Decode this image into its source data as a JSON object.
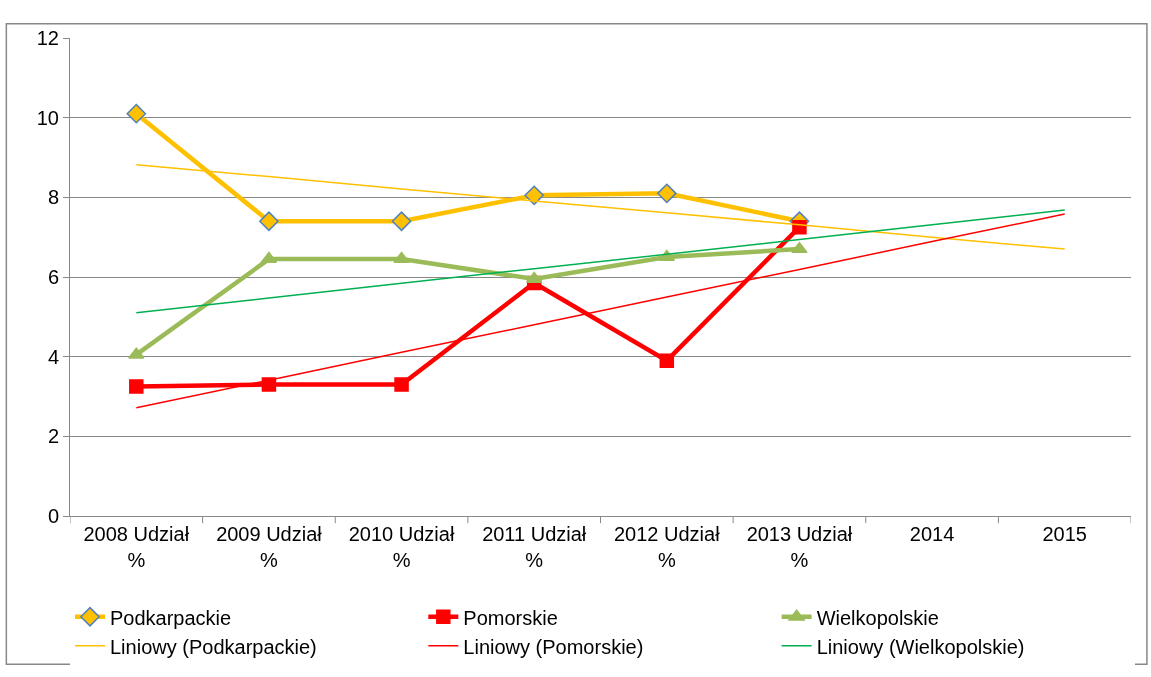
{
  "chart_data": {
    "type": "line",
    "categories": [
      "2008 Udział %",
      "2009 Udział %",
      "2010 Udział %",
      "2011 Udział %",
      "2012 Udział %",
      "2013 Udział %",
      "2014",
      "2015"
    ],
    "series": [
      {
        "name": "Podkarpackie",
        "color": "#ffc000",
        "marker": "diamond",
        "values": [
          10.1,
          7.4,
          7.4,
          8.05,
          8.1,
          7.4,
          null,
          null
        ]
      },
      {
        "name": "Pomorskie",
        "color": "#ff0000",
        "marker": "square",
        "values": [
          3.25,
          3.3,
          3.3,
          5.85,
          3.9,
          7.25,
          null,
          null
        ]
      },
      {
        "name": "Wielkopolskie",
        "color": "#9bbb59",
        "marker": "triangle",
        "values": [
          4.05,
          6.45,
          6.45,
          5.95,
          6.5,
          6.7,
          null,
          null
        ]
      },
      {
        "name": "Liniowy (Podkarpackie)",
        "color": "#ffc000",
        "marker": "none",
        "values": [
          8.82,
          8.52,
          8.21,
          7.91,
          7.61,
          7.31,
          7.0,
          6.7
        ]
      },
      {
        "name": "Liniowy (Pomorskie)",
        "color": "#ff0000",
        "marker": "none",
        "values": [
          2.72,
          3.41,
          4.11,
          4.8,
          5.5,
          6.19,
          6.89,
          7.58
        ]
      },
      {
        "name": "Liniowy (Wielkopolskie)",
        "color": "#00b050",
        "marker": "none",
        "values": [
          5.1,
          5.47,
          5.84,
          6.21,
          6.57,
          6.94,
          7.31,
          7.68
        ]
      }
    ],
    "ylim": [
      0,
      12
    ],
    "yticks": [
      0,
      2,
      4,
      6,
      8,
      10,
      12
    ],
    "grid": "y",
    "legend": "bottom"
  }
}
